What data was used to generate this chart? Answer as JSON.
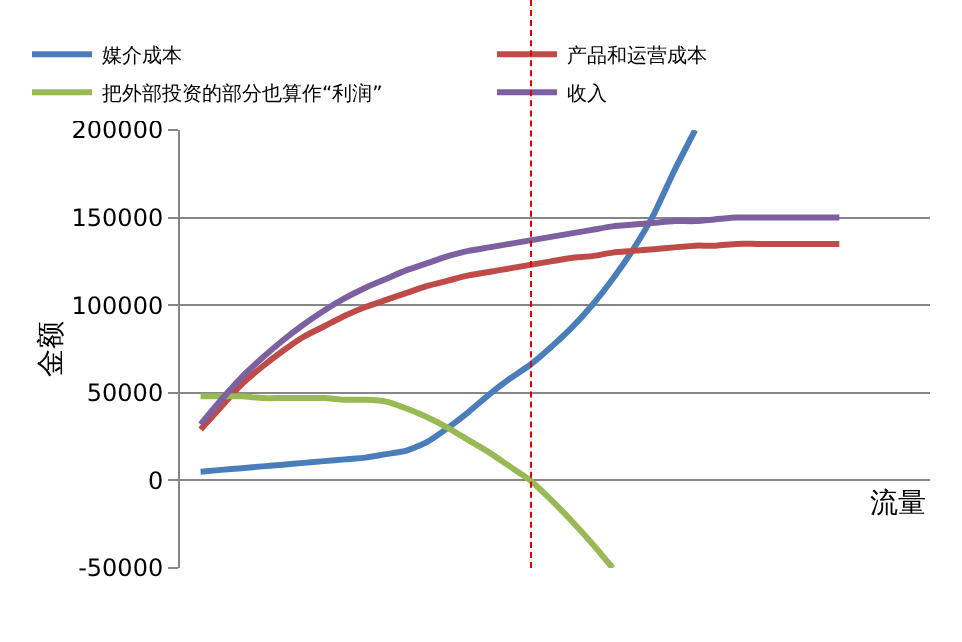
{
  "chart_data": {
    "type": "line",
    "xlabel": "流量",
    "ylabel": "金额",
    "categories": [
      null,
      null,
      null,
      null,
      null,
      null,
      null,
      null,
      null,
      null,
      null,
      null,
      null,
      null,
      null,
      null,
      null,
      null,
      null,
      null,
      null,
      null,
      null,
      null,
      null,
      null,
      null,
      null,
      null,
      null,
      null,
      null
    ],
    "series": [
      {
        "name": "媒介成本",
        "color": "#4a7ebb",
        "values": [
          5000,
          6000,
          7000,
          8000,
          9000,
          10000,
          11000,
          12000,
          13000,
          15000,
          17000,
          22000,
          30000,
          39000,
          49000,
          58000,
          66000,
          76000,
          87000,
          100000,
          115000,
          132000,
          152000,
          177000,
          200000,
          null,
          null,
          null,
          null,
          null,
          null,
          null
        ]
      },
      {
        "name": "产品和运营成本",
        "color": "#be4b48",
        "values": [
          29000,
          42000,
          55000,
          65000,
          74000,
          82000,
          88000,
          94000,
          99000,
          103000,
          107000,
          111000,
          114000,
          117000,
          119000,
          121000,
          123000,
          125000,
          127000,
          128000,
          130000,
          131000,
          132000,
          133000,
          134000,
          134000,
          135000,
          135000,
          135000,
          135000,
          135000,
          135000
        ]
      },
      {
        "name": "把外部投资的部分也算作“利润”",
        "color": "#98b954",
        "values": [
          48000,
          48000,
          48000,
          47000,
          47000,
          47000,
          47000,
          46000,
          46000,
          45000,
          41000,
          36000,
          30000,
          23000,
          16000,
          8000,
          0,
          -11000,
          -23000,
          -36000,
          -50000,
          null,
          null,
          null,
          null,
          null,
          null,
          null,
          null,
          null,
          null,
          null
        ]
      },
      {
        "name": "收入",
        "color": "#7d60a0",
        "values": [
          32000,
          46000,
          59000,
          70000,
          80000,
          89000,
          97000,
          104000,
          110000,
          115000,
          120000,
          124000,
          128000,
          131000,
          133000,
          135000,
          137000,
          139000,
          141000,
          143000,
          145000,
          146000,
          147000,
          148000,
          148000,
          149000,
          150000,
          150000,
          150000,
          150000,
          150000,
          150000
        ]
      }
    ],
    "ylim": [
      -50000,
      200000
    ],
    "yticks": [
      -50000,
      0,
      50000,
      100000,
      150000,
      200000
    ],
    "grid": "y",
    "legend": "top",
    "tick_labels": "y",
    "line_style": "solid",
    "marker": "none"
  }
}
